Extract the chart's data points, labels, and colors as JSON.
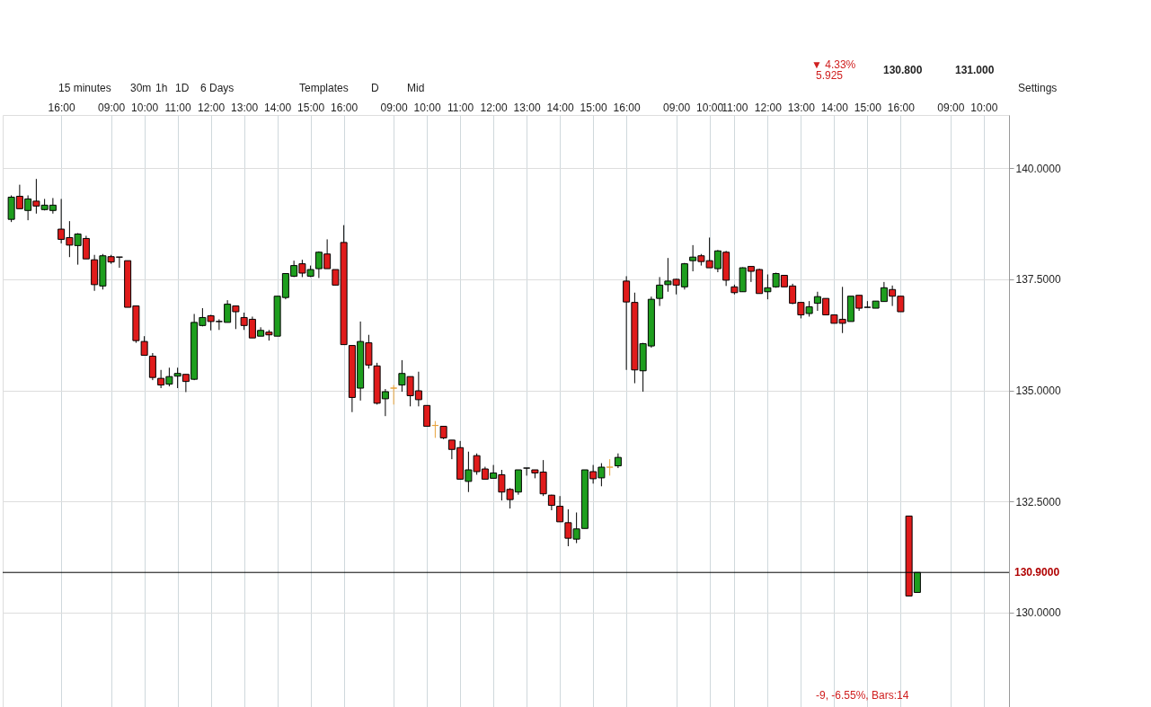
{
  "chart_data": {
    "type": "candlestick",
    "categories": [
      null,
      null,
      null,
      null,
      null,
      null,
      "16:00",
      null,
      null,
      null,
      null,
      null,
      "09:00",
      null,
      null,
      null,
      "10:00",
      null,
      null,
      null,
      "11:00",
      null,
      null,
      null,
      "12:00",
      null,
      null,
      null,
      "13:00",
      null,
      null,
      null,
      "14:00",
      null,
      null,
      null,
      "15:00",
      null,
      null,
      null,
      "16:00",
      null,
      null,
      null,
      null,
      null,
      "09:00",
      null,
      null,
      null,
      "10:00",
      null,
      null,
      null,
      "11:00",
      null,
      null,
      null,
      "12:00",
      null,
      null,
      null,
      "13:00",
      null,
      null,
      null,
      "14:00",
      null,
      null,
      null,
      "15:00",
      null,
      null,
      null,
      "16:00",
      null,
      null,
      null,
      null,
      null,
      "09:00",
      null,
      null,
      null,
      "10:00",
      null,
      null,
      "11:00",
      null,
      null,
      null,
      "12:00",
      null,
      null,
      null,
      "13:00",
      null,
      null,
      null,
      "14:00",
      null,
      null,
      null,
      "15:00",
      null,
      null,
      null,
      "16:00",
      null,
      null,
      null,
      null,
      null,
      "09:00",
      null,
      null,
      null,
      "10:00",
      null,
      null
    ],
    "ohlc": [
      [
        138.85,
        139.39,
        138.79,
        139.35
      ],
      [
        139.37,
        139.63,
        139.09,
        139.09
      ],
      [
        139.05,
        139.39,
        138.83,
        139.31
      ],
      [
        139.26,
        139.76,
        138.98,
        139.15
      ],
      [
        139.07,
        139.31,
        139.05,
        139.17
      ],
      [
        139.05,
        139.33,
        138.98,
        139.17
      ],
      [
        138.63,
        139.31,
        138.31,
        138.4
      ],
      [
        138.44,
        138.81,
        138.0,
        138.27
      ],
      [
        138.26,
        138.54,
        137.83,
        138.52
      ],
      [
        138.42,
        138.48,
        137.96,
        137.96
      ],
      [
        137.94,
        138.05,
        137.24,
        137.38
      ],
      [
        137.35,
        138.07,
        137.27,
        138.03
      ],
      [
        138.01,
        138.05,
        137.85,
        137.89
      ],
      [
        138.0,
        138.0,
        137.76,
        138.0
      ],
      [
        137.92,
        137.92,
        136.87,
        136.87
      ],
      [
        136.9,
        136.9,
        136.07,
        136.12
      ],
      [
        136.1,
        136.22,
        135.79,
        135.79
      ],
      [
        135.77,
        135.84,
        135.23,
        135.29
      ],
      [
        135.27,
        135.46,
        135.05,
        135.12
      ],
      [
        135.14,
        135.51,
        135.09,
        135.31
      ],
      [
        135.32,
        135.51,
        135.05,
        135.38
      ],
      [
        135.36,
        135.36,
        134.96,
        135.2
      ],
      [
        135.25,
        136.72,
        135.23,
        136.53
      ],
      [
        136.46,
        136.85,
        136.44,
        136.64
      ],
      [
        136.68,
        136.7,
        136.35,
        136.55
      ],
      [
        136.55,
        136.6,
        136.36,
        136.55
      ],
      [
        136.53,
        137.03,
        136.53,
        136.94
      ],
      [
        136.9,
        136.9,
        136.38,
        136.77
      ],
      [
        136.64,
        136.75,
        136.36,
        136.46
      ],
      [
        136.6,
        136.66,
        136.18,
        136.18
      ],
      [
        136.22,
        136.42,
        136.22,
        136.35
      ],
      [
        136.31,
        136.36,
        136.12,
        136.25
      ],
      [
        136.22,
        137.12,
        136.22,
        137.12
      ],
      [
        137.09,
        137.63,
        137.05,
        137.63
      ],
      [
        137.57,
        137.92,
        137.55,
        137.81
      ],
      [
        137.85,
        137.94,
        137.55,
        137.64
      ],
      [
        137.57,
        137.81,
        137.55,
        137.72
      ],
      [
        137.74,
        138.13,
        137.53,
        138.11
      ],
      [
        138.07,
        138.4,
        137.74,
        137.74
      ],
      [
        137.72,
        137.72,
        137.37,
        137.37
      ],
      [
        138.33,
        138.72,
        136.03,
        136.03
      ],
      [
        136.01,
        136.01,
        134.51,
        134.84
      ],
      [
        135.05,
        136.55,
        134.77,
        136.1
      ],
      [
        136.07,
        136.25,
        135.49,
        135.57
      ],
      [
        135.55,
        135.62,
        134.68,
        134.71
      ],
      [
        134.81,
        135.03,
        134.42,
        134.97
      ],
      [
        135.05,
        135.12,
        134.68,
        135.05
      ],
      [
        135.12,
        135.68,
        134.97,
        135.38
      ],
      [
        135.31,
        135.31,
        134.64,
        134.88
      ],
      [
        134.99,
        135.42,
        134.64,
        134.79
      ],
      [
        134.66,
        134.66,
        134.19,
        134.19
      ],
      [
        134.21,
        134.31,
        133.93,
        134.21
      ],
      [
        134.19,
        134.19,
        133.9,
        133.93
      ],
      [
        133.88,
        133.88,
        133.45,
        133.67
      ],
      [
        133.71,
        133.86,
        133.0,
        133.0
      ],
      [
        132.95,
        133.62,
        132.71,
        133.21
      ],
      [
        133.53,
        133.58,
        133.1,
        133.17
      ],
      [
        133.23,
        133.28,
        133.0,
        133.0
      ],
      [
        133.02,
        133.32,
        133.02,
        133.14
      ],
      [
        133.1,
        133.21,
        132.52,
        132.71
      ],
      [
        132.77,
        132.8,
        132.34,
        132.54
      ],
      [
        132.71,
        133.21,
        132.65,
        133.21
      ],
      [
        133.25,
        133.25,
        133.08,
        133.25
      ],
      [
        133.21,
        133.21,
        133.02,
        133.14
      ],
      [
        133.16,
        133.43,
        132.62,
        132.67
      ],
      [
        132.64,
        132.65,
        132.3,
        132.41
      ],
      [
        132.39,
        132.62,
        132.04,
        132.04
      ],
      [
        132.02,
        132.32,
        131.49,
        131.67
      ],
      [
        131.65,
        132.25,
        131.56,
        131.88
      ],
      [
        131.89,
        133.21,
        131.89,
        133.21
      ],
      [
        133.17,
        133.32,
        132.9,
        133.01
      ],
      [
        133.03,
        133.36,
        132.84,
        133.27
      ],
      [
        133.27,
        133.45,
        133.08,
        133.27
      ],
      [
        133.3,
        133.58,
        133.25,
        133.49
      ],
      [
        137.46,
        137.57,
        135.46,
        136.99
      ],
      [
        136.98,
        137.2,
        135.16,
        135.46
      ],
      [
        135.44,
        136.07,
        134.97,
        136.05
      ],
      [
        136.0,
        137.11,
        135.96,
        137.05
      ],
      [
        137.07,
        137.55,
        136.9,
        137.37
      ],
      [
        137.38,
        137.98,
        137.22,
        137.46
      ],
      [
        137.5,
        137.51,
        137.16,
        137.37
      ],
      [
        137.33,
        137.87,
        137.27,
        137.85
      ],
      [
        137.92,
        138.27,
        137.68,
        138.0
      ],
      [
        138.03,
        138.07,
        137.81,
        137.9
      ],
      [
        137.92,
        138.44,
        137.76,
        137.76
      ],
      [
        137.74,
        138.16,
        137.66,
        138.14
      ],
      [
        138.11,
        138.14,
        137.35,
        137.48
      ],
      [
        137.33,
        137.38,
        137.16,
        137.2
      ],
      [
        137.22,
        137.77,
        137.22,
        137.76
      ],
      [
        137.79,
        137.79,
        137.44,
        137.68
      ],
      [
        137.72,
        137.74,
        137.18,
        137.18
      ],
      [
        137.22,
        137.61,
        137.05,
        137.31
      ],
      [
        137.33,
        137.65,
        137.31,
        137.63
      ],
      [
        137.59,
        137.59,
        137.33,
        137.33
      ],
      [
        137.35,
        137.4,
        136.94,
        136.96
      ],
      [
        136.98,
        136.98,
        136.62,
        136.7
      ],
      [
        136.73,
        137.01,
        136.66,
        136.88
      ],
      [
        136.96,
        137.22,
        136.79,
        137.11
      ],
      [
        137.07,
        137.07,
        136.7,
        136.7
      ],
      [
        136.7,
        136.7,
        136.51,
        136.51
      ],
      [
        136.6,
        137.33,
        136.29,
        136.51
      ],
      [
        136.55,
        137.12,
        136.55,
        137.12
      ],
      [
        137.14,
        137.14,
        136.79,
        136.85
      ],
      [
        136.87,
        137.01,
        136.87,
        136.87
      ],
      [
        136.85,
        137.01,
        136.85,
        137.01
      ],
      [
        137.0,
        137.44,
        137.0,
        137.31
      ],
      [
        137.27,
        137.36,
        136.9,
        137.12
      ],
      [
        137.12,
        137.12,
        136.77,
        136.77
      ],
      [
        132.17,
        132.17,
        130.37,
        130.37
      ],
      [
        130.45,
        130.9,
        130.45,
        130.9
      ],
      null,
      null,
      null,
      null,
      null,
      null,
      null,
      null,
      null,
      null
    ],
    "colors": [
      "#1e9e1e",
      "#e01b1b",
      "#1e9e1e",
      "#e01b1b",
      "#1e9e1e",
      "#1e9e1e",
      "#e01b1b",
      "#e01b1b",
      "#1e9e1e",
      "#e01b1b",
      "#e01b1b",
      "#1e9e1e",
      "#e01b1b",
      "#000000",
      "#e01b1b",
      "#e01b1b",
      "#e01b1b",
      "#e01b1b",
      "#e01b1b",
      "#1e9e1e",
      "#1e9e1e",
      "#e01b1b",
      "#1e9e1e",
      "#1e9e1e",
      "#e01b1b",
      "#000000",
      "#1e9e1e",
      "#e01b1b",
      "#e01b1b",
      "#e01b1b",
      "#1e9e1e",
      "#e01b1b",
      "#1e9e1e",
      "#1e9e1e",
      "#1e9e1e",
      "#e01b1b",
      "#1e9e1e",
      "#1e9e1e",
      "#e01b1b",
      "#e01b1b",
      "#e01b1b",
      "#e01b1b",
      "#1e9e1e",
      "#e01b1b",
      "#e01b1b",
      "#1e9e1e",
      "#e8a33c",
      "#1e9e1e",
      "#e01b1b",
      "#e01b1b",
      "#e01b1b",
      "#e8a33c",
      "#e01b1b",
      "#e01b1b",
      "#e01b1b",
      "#1e9e1e",
      "#e01b1b",
      "#e01b1b",
      "#1e9e1e",
      "#e01b1b",
      "#e01b1b",
      "#1e9e1e",
      "#000000",
      "#e01b1b",
      "#e01b1b",
      "#e01b1b",
      "#e01b1b",
      "#e01b1b",
      "#1e9e1e",
      "#1e9e1e",
      "#e01b1b",
      "#1e9e1e",
      "#e8a33c",
      "#1e9e1e",
      "#e01b1b",
      "#e01b1b",
      "#1e9e1e",
      "#1e9e1e",
      "#1e9e1e",
      "#1e9e1e",
      "#e01b1b",
      "#1e9e1e",
      "#1e9e1e",
      "#e01b1b",
      "#e01b1b",
      "#1e9e1e",
      "#e01b1b",
      "#e01b1b",
      "#1e9e1e",
      "#e01b1b",
      "#e01b1b",
      "#1e9e1e",
      "#1e9e1e",
      "#e01b1b",
      "#e01b1b",
      "#e01b1b",
      "#1e9e1e",
      "#1e9e1e",
      "#e01b1b",
      "#e01b1b",
      "#e01b1b",
      "#1e9e1e",
      "#e01b1b",
      "#000000",
      "#1e9e1e",
      "#1e9e1e",
      "#e01b1b",
      "#e01b1b",
      "#e01b1b",
      "#1e9e1e",
      null,
      null,
      null,
      null,
      null,
      null,
      null,
      null,
      null,
      null
    ],
    "ylim": [
      127.85,
      141.2
    ],
    "yticks": [
      {
        "value": 130,
        "label": "130.0000"
      },
      {
        "value": 132.5,
        "label": "132.5000"
      },
      {
        "value": 135,
        "label": "135.0000"
      },
      {
        "value": 137.5,
        "label": "137.5000"
      },
      {
        "value": 140,
        "label": "140.0000"
      }
    ],
    "grid": true,
    "ref_lines": [
      {
        "axis": "y",
        "value": 130.9,
        "label": "130.9000",
        "color": "#000000"
      }
    ],
    "annotations": [
      "▼ 4.33%",
      "5.925",
      "130.800",
      "131.000",
      "15 minutes",
      "30m",
      "1h",
      "1D",
      "6 Days",
      "Templates",
      "D",
      "Mid",
      "Settings",
      "-9, -6.55%, Bars:14"
    ]
  }
}
